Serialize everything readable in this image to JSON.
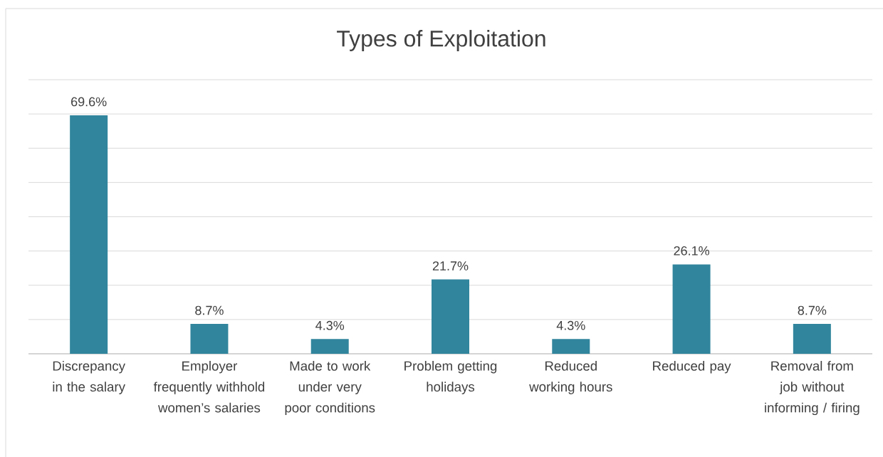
{
  "chart_data": {
    "type": "bar",
    "title": "Types of Exploitation",
    "categories": [
      "Discrepancy in the salary",
      "Employer frequently withhold women’s salaries",
      "Made to work under very poor conditions",
      "Problem getting holidays",
      "Reduced working hours",
      "Reduced pay",
      "Removal from job without informing / firing"
    ],
    "values": [
      69.6,
      8.7,
      4.3,
      21.7,
      4.3,
      26.1,
      8.7
    ],
    "value_labels": [
      "69.6%",
      "8.7%",
      "4.3%",
      "21.7%",
      "4.3%",
      "26.1%",
      "8.7%"
    ],
    "color": "#31859c",
    "ylim": [
      0,
      80
    ],
    "grid": "y",
    "tick_labels": "x"
  }
}
